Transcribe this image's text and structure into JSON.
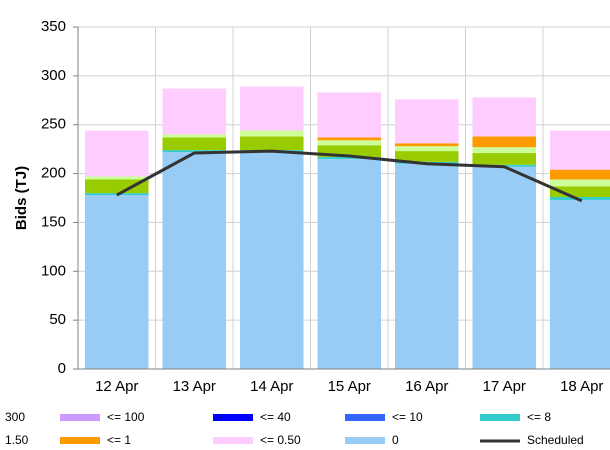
{
  "chart_data": {
    "type": "bar",
    "stacked": true,
    "y_label": "Bids (TJ)",
    "categories": [
      "12 Apr",
      "13 Apr",
      "14 Apr",
      "15 Apr",
      "16 Apr",
      "17 Apr",
      "18 Apr"
    ],
    "series": [
      {
        "name": "0",
        "color": "#99ccf5",
        "values": [
          178,
          222,
          222,
          215,
          210,
          207,
          173
        ]
      },
      {
        "name": "<= 8",
        "color": "#33cccc",
        "values": [
          2,
          2,
          2,
          2,
          2,
          2,
          3
        ]
      },
      {
        "name": "1.50",
        "color": "#99cc00",
        "values": [
          14,
          13,
          14,
          12,
          11,
          12,
          11
        ]
      },
      {
        "name": "300",
        "color": "#ccff99",
        "values": [
          3,
          3,
          6,
          5,
          5,
          6,
          7
        ]
      },
      {
        "name": "<= 1",
        "color": "#ff9900",
        "values": [
          0,
          0,
          0,
          3,
          3,
          11,
          10
        ]
      },
      {
        "name": "<= 0.50",
        "color": "#ffccff",
        "values": [
          47,
          47,
          45,
          46,
          45,
          40,
          40
        ]
      },
      {
        "name": "<= 100",
        "color": "#cc99ff",
        "values": [
          0,
          0,
          0,
          0,
          0,
          0,
          0
        ]
      },
      {
        "name": "<= 40",
        "color": "#0000ff",
        "values": [
          0,
          0,
          0,
          0,
          0,
          0,
          0
        ]
      },
      {
        "name": "<= 10",
        "color": "#3366ff",
        "values": [
          0,
          0,
          0,
          0,
          0,
          0,
          0
        ]
      }
    ],
    "line": {
      "name": "Scheduled",
      "color": "#333333",
      "values": [
        178,
        221,
        223,
        218,
        210,
        207,
        172
      ]
    },
    "ylim": [
      0,
      350
    ],
    "yticks": [
      0,
      50,
      100,
      150,
      200,
      250,
      300,
      350
    ],
    "grid": true
  }
}
